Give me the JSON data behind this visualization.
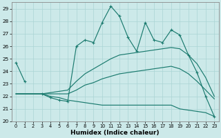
{
  "xlabel": "Humidex (Indice chaleur)",
  "xlim": [
    -0.5,
    23.5
  ],
  "ylim": [
    20,
    29.5
  ],
  "yticks": [
    20,
    21,
    22,
    23,
    24,
    25,
    26,
    27,
    28,
    29
  ],
  "xticks": [
    0,
    1,
    2,
    3,
    4,
    5,
    6,
    7,
    8,
    9,
    10,
    11,
    12,
    13,
    14,
    15,
    16,
    17,
    18,
    19,
    20,
    21,
    22,
    23
  ],
  "background_color": "#cce9e9",
  "grid_color": "#aad4d4",
  "line_color": "#1a7a6e",
  "hours": [
    0,
    1,
    2,
    3,
    4,
    5,
    6,
    7,
    8,
    9,
    10,
    11,
    12,
    13,
    14,
    15,
    16,
    17,
    18,
    19,
    20,
    21,
    22,
    23
  ],
  "jagged": [
    24.7,
    23.2,
    null,
    22.2,
    21.9,
    21.7,
    21.6,
    26.0,
    26.5,
    26.3,
    27.9,
    29.2,
    28.4,
    26.7,
    25.6,
    27.9,
    26.5,
    26.3,
    27.3,
    26.9,
    25.3,
    23.9,
    22.0,
    20.4
  ],
  "upper": [
    22.2,
    22.2,
    22.2,
    22.2,
    22.3,
    22.4,
    22.5,
    23.2,
    23.8,
    24.2,
    24.6,
    25.0,
    25.3,
    25.4,
    25.5,
    25.6,
    25.7,
    25.8,
    25.9,
    25.8,
    25.3,
    24.6,
    23.5,
    22.0
  ],
  "middle": [
    22.2,
    22.2,
    22.2,
    22.2,
    22.2,
    22.2,
    22.2,
    22.5,
    22.9,
    23.1,
    23.4,
    23.6,
    23.8,
    23.9,
    24.0,
    24.1,
    24.2,
    24.3,
    24.4,
    24.2,
    23.8,
    23.2,
    22.5,
    21.8
  ],
  "lower": [
    22.2,
    22.2,
    22.2,
    22.2,
    22.0,
    21.9,
    21.7,
    21.6,
    21.5,
    21.4,
    21.3,
    21.3,
    21.3,
    21.3,
    21.3,
    21.3,
    21.3,
    21.3,
    21.3,
    21.0,
    20.9,
    20.8,
    20.7,
    20.4
  ]
}
